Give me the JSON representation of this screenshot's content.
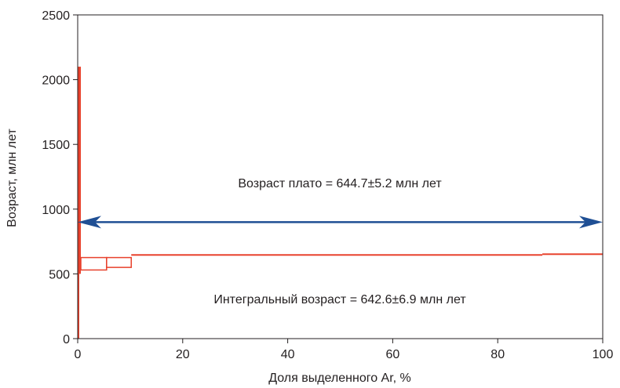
{
  "chart_data": {
    "type": "step",
    "title": "",
    "xlabel": "Доля выделенного Ar, %",
    "ylabel": "Возраст, млн лет",
    "xlim": [
      0,
      100
    ],
    "ylim": [
      0,
      2500
    ],
    "x_ticks": [
      0,
      20,
      40,
      60,
      80,
      100
    ],
    "y_ticks": [
      0,
      500,
      1000,
      1500,
      2000,
      2500
    ],
    "grid": false,
    "colors": {
      "series": "#e8412c",
      "plateau_arrow": "#1f4f94",
      "axis": "#231f20"
    },
    "steps": [
      {
        "x_start": 0.0,
        "x_end": 0.3,
        "age_center": 1050,
        "age_error": 1050,
        "filled": true
      },
      {
        "x_start": 0.3,
        "x_end": 0.6,
        "age_center": 1300,
        "age_error": 800,
        "filled": true
      },
      {
        "x_start": 0.6,
        "x_end": 5.5,
        "age_center": 578,
        "age_error": 48,
        "filled": false
      },
      {
        "x_start": 5.5,
        "x_end": 10.2,
        "age_center": 588,
        "age_error": 38,
        "filled": false
      },
      {
        "x_start": 10.2,
        "x_end": 88.5,
        "age_center": 644,
        "age_error": 4,
        "filled": true
      },
      {
        "x_start": 88.5,
        "x_end": 100.0,
        "age_center": 650,
        "age_error": 4,
        "filled": true
      }
    ],
    "plateau": {
      "age": 900,
      "x_start": 0,
      "x_end": 100
    },
    "annotations": {
      "plateau": "Возраст плато = 644.7±5.2 млн лет",
      "integral": "Интегральный возраст = 642.6±6.9 млн лет"
    }
  }
}
